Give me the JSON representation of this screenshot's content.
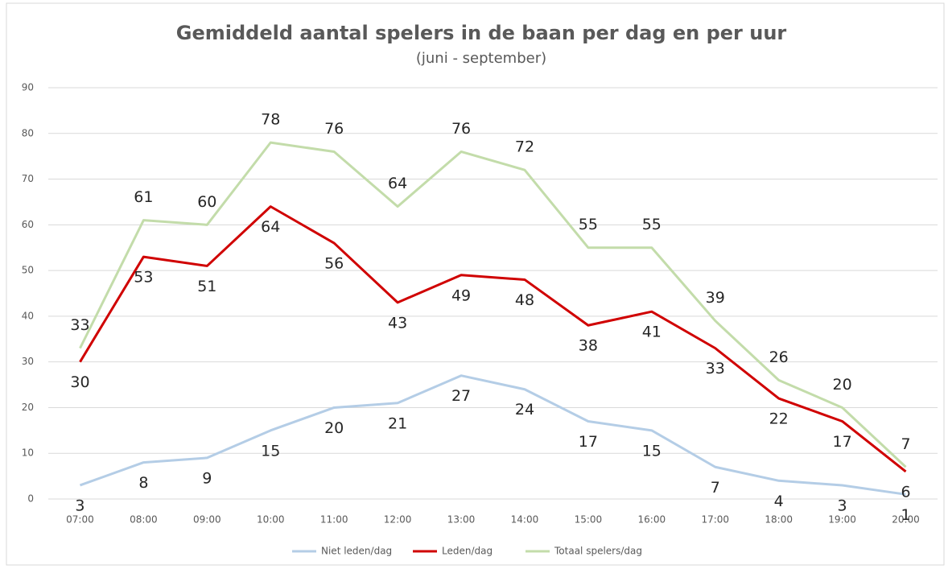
{
  "chart_data": {
    "type": "line",
    "title": "Gemiddeld aantal spelers in de baan per dag en per uur",
    "subtitle": "(juni - september)",
    "categories": [
      "07:00",
      "08:00",
      "09:00",
      "10:00",
      "11:00",
      "12:00",
      "13:00",
      "14:00",
      "15:00",
      "16:00",
      "17:00",
      "18:00",
      "19:00",
      "20:00"
    ],
    "series": [
      {
        "name": "Niet leden/dag",
        "color": "#b4cde6",
        "values": [
          3,
          8,
          9,
          15,
          20,
          21,
          27,
          24,
          17,
          15,
          7,
          4,
          3,
          1
        ]
      },
      {
        "name": "Leden/dag",
        "color": "#d00000",
        "values": [
          30,
          53,
          51,
          64,
          56,
          43,
          49,
          48,
          38,
          41,
          33,
          22,
          17,
          6
        ]
      },
      {
        "name": "Totaal spelers/dag",
        "color": "#c3dcaa",
        "values": [
          33,
          61,
          60,
          78,
          76,
          64,
          76,
          72,
          55,
          55,
          39,
          26,
          20,
          7
        ]
      }
    ],
    "ylim": [
      0,
      90
    ],
    "yticks": [
      0,
      10,
      20,
      30,
      40,
      50,
      60,
      70,
      80,
      90
    ],
    "grid": true,
    "legend": "bottom"
  }
}
